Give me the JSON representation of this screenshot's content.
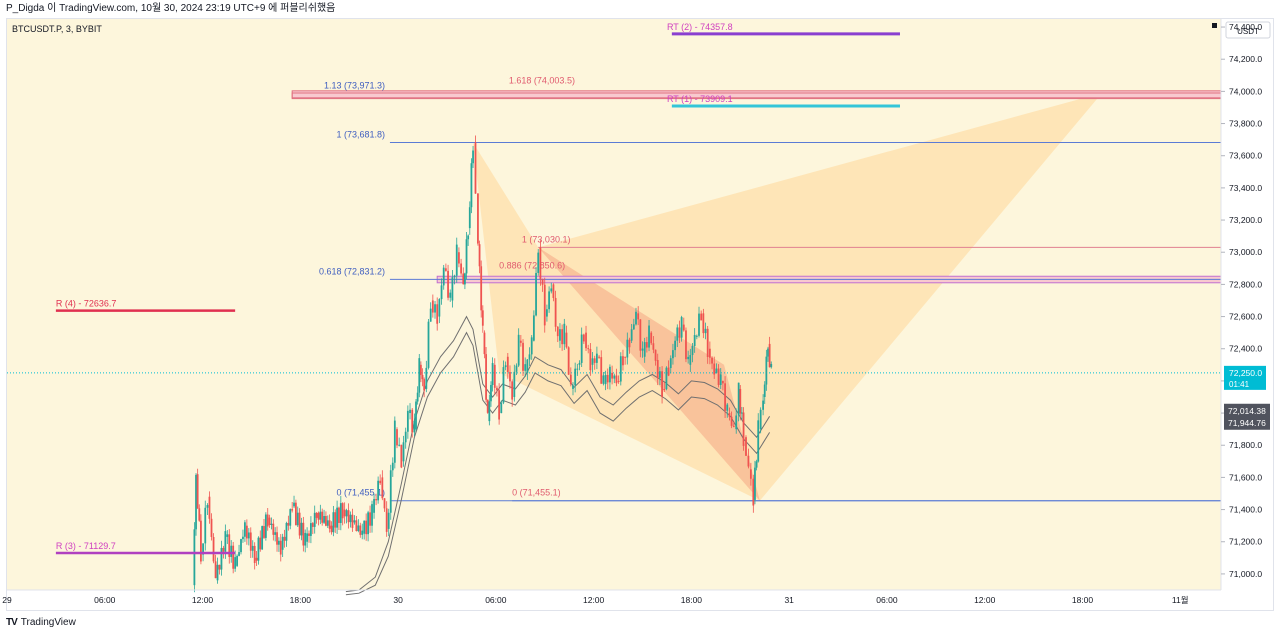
{
  "header": {
    "publish_line": "P_Digda 이 TradingView.com, 10월 30, 2024 23:19 UTC+9 에 퍼블리쉬했음"
  },
  "symbol_label": "BTCUSDT.P, 3, BYBIT",
  "footer": {
    "logo_text": "TV",
    "brand": "TradingView"
  },
  "chart_data": {
    "type": "candlestick",
    "currency_label": "USDT",
    "ylim": [
      70900,
      74450
    ],
    "y_ticks": [
      71000,
      71200,
      71400,
      71600,
      71800,
      72000,
      72200,
      72400,
      72600,
      72800,
      73000,
      73200,
      73400,
      73600,
      73800,
      74000,
      74200,
      74400
    ],
    "y_tick_labels": [
      "71,000.0",
      "71,200.0",
      "71,400.0",
      "71,600.0",
      "71,800.0",
      "72,000.0",
      "72,200.0",
      "72,400.0",
      "72,600.0",
      "72,800.0",
      "73,000.0",
      "73,200.0",
      "73,400.0",
      "73,600.0",
      "73,800.0",
      "74,000.0",
      "74,200.0",
      "74,400.0"
    ],
    "x_ticks": [
      {
        "label": "29",
        "t": 0
      },
      {
        "label": "06:00",
        "t": 6
      },
      {
        "label": "12:00",
        "t": 12
      },
      {
        "label": "18:00",
        "t": 18
      },
      {
        "label": "30",
        "t": 24
      },
      {
        "label": "06:00",
        "t": 30
      },
      {
        "label": "12:00",
        "t": 36
      },
      {
        "label": "18:00",
        "t": 42
      },
      {
        "label": "31",
        "t": 48
      },
      {
        "label": "06:00",
        "t": 54
      },
      {
        "label": "12:00",
        "t": 60
      },
      {
        "label": "18:00",
        "t": 66
      },
      {
        "label": "11월",
        "t": 72
      }
    ],
    "xlim_hours": [
      0,
      74.5
    ],
    "current_price": {
      "value": 72250.0,
      "label": "72,250.0",
      "countdown": "01:41",
      "color": "#00bcd4"
    },
    "extra_labels": [
      {
        "label": "72,014.38",
        "value": 72014.38
      },
      {
        "label": "71,944.76",
        "value": 71944.76
      }
    ],
    "price_path": [
      [
        11.4,
        70930
      ],
      [
        11.6,
        71620
      ],
      [
        11.9,
        71120
      ],
      [
        12.3,
        71480
      ],
      [
        12.8,
        70960
      ],
      [
        13.4,
        71230
      ],
      [
        14.0,
        71050
      ],
      [
        14.6,
        71300
      ],
      [
        15.2,
        71100
      ],
      [
        16.0,
        71350
      ],
      [
        16.8,
        71150
      ],
      [
        17.5,
        71420
      ],
      [
        18.3,
        71200
      ],
      [
        19.0,
        71380
      ],
      [
        19.8,
        71300
      ],
      [
        20.6,
        71400
      ],
      [
        21.2,
        71320
      ],
      [
        21.8,
        71250
      ],
      [
        22.4,
        71380
      ],
      [
        22.9,
        71600
      ],
      [
        23.3,
        71280
      ],
      [
        23.8,
        71900
      ],
      [
        24.2,
        71700
      ],
      [
        24.6,
        72000
      ],
      [
        25.0,
        71900
      ],
      [
        25.3,
        72300
      ],
      [
        25.6,
        72150
      ],
      [
        26.0,
        72700
      ],
      [
        26.4,
        72600
      ],
      [
        26.8,
        72900
      ],
      [
        27.2,
        72700
      ],
      [
        27.6,
        73000
      ],
      [
        28.0,
        72800
      ],
      [
        28.3,
        73150
      ],
      [
        28.6,
        73682
      ],
      [
        28.9,
        73050
      ],
      [
        29.2,
        72500
      ],
      [
        29.5,
        71950
      ],
      [
        29.8,
        72300
      ],
      [
        30.2,
        72000
      ],
      [
        30.6,
        72350
      ],
      [
        31.0,
        72100
      ],
      [
        31.4,
        72450
      ],
      [
        31.8,
        72250
      ],
      [
        32.2,
        72450
      ],
      [
        32.6,
        73030
      ],
      [
        33.0,
        72600
      ],
      [
        33.4,
        72800
      ],
      [
        33.8,
        72450
      ],
      [
        34.2,
        72500
      ],
      [
        34.6,
        72150
      ],
      [
        35.0,
        72300
      ],
      [
        35.4,
        72500
      ],
      [
        35.8,
        72300
      ],
      [
        36.2,
        72350
      ],
      [
        36.6,
        72180
      ],
      [
        37.0,
        72250
      ],
      [
        37.4,
        72200
      ],
      [
        37.8,
        72350
      ],
      [
        38.2,
        72450
      ],
      [
        38.6,
        72620
      ],
      [
        39.0,
        72350
      ],
      [
        39.4,
        72500
      ],
      [
        39.8,
        72330
      ],
      [
        40.2,
        72150
      ],
      [
        40.6,
        72280
      ],
      [
        41.0,
        72450
      ],
      [
        41.4,
        72550
      ],
      [
        41.8,
        72300
      ],
      [
        42.2,
        72480
      ],
      [
        42.6,
        72620
      ],
      [
        43.0,
        72400
      ],
      [
        43.4,
        72250
      ],
      [
        43.8,
        72200
      ],
      [
        44.2,
        72000
      ],
      [
        44.6,
        71900
      ],
      [
        44.9,
        72150
      ],
      [
        45.2,
        71850
      ],
      [
        45.5,
        71650
      ],
      [
        45.8,
        71460
      ],
      [
        46.1,
        71900
      ],
      [
        46.4,
        72100
      ],
      [
        46.7,
        72430
      ],
      [
        46.9,
        72250
      ]
    ],
    "indicator_upper": [
      [
        20.8,
        70890
      ],
      [
        21.6,
        70900
      ],
      [
        22.6,
        70980
      ],
      [
        23.4,
        71200
      ],
      [
        24.2,
        71560
      ],
      [
        25.0,
        71950
      ],
      [
        25.8,
        72200
      ],
      [
        26.6,
        72350
      ],
      [
        27.4,
        72450
      ],
      [
        28.2,
        72600
      ],
      [
        28.6,
        72520
      ],
      [
        29.2,
        72180
      ],
      [
        29.8,
        72100
      ],
      [
        30.4,
        72180
      ],
      [
        31.2,
        72150
      ],
      [
        31.8,
        72230
      ],
      [
        32.4,
        72350
      ],
      [
        33.2,
        72300
      ],
      [
        34.0,
        72270
      ],
      [
        34.8,
        72160
      ],
      [
        35.6,
        72240
      ],
      [
        36.4,
        72100
      ],
      [
        37.2,
        72050
      ],
      [
        38.0,
        72130
      ],
      [
        38.8,
        72200
      ],
      [
        39.6,
        72240
      ],
      [
        40.4,
        72190
      ],
      [
        41.2,
        72120
      ],
      [
        42.0,
        72200
      ],
      [
        42.8,
        72190
      ],
      [
        43.6,
        72150
      ],
      [
        44.4,
        72080
      ],
      [
        45.2,
        71940
      ],
      [
        46.0,
        71850
      ],
      [
        46.8,
        71980
      ]
    ],
    "indicator_lower": [
      [
        20.8,
        70870
      ],
      [
        21.6,
        70880
      ],
      [
        22.6,
        70930
      ],
      [
        23.4,
        71110
      ],
      [
        24.2,
        71460
      ],
      [
        25.0,
        71850
      ],
      [
        25.8,
        72100
      ],
      [
        26.6,
        72250
      ],
      [
        27.4,
        72350
      ],
      [
        28.2,
        72500
      ],
      [
        28.6,
        72420
      ],
      [
        29.2,
        72080
      ],
      [
        29.8,
        72000
      ],
      [
        30.4,
        72080
      ],
      [
        31.2,
        72050
      ],
      [
        31.8,
        72130
      ],
      [
        32.4,
        72250
      ],
      [
        33.2,
        72200
      ],
      [
        34.0,
        72170
      ],
      [
        34.8,
        72060
      ],
      [
        35.6,
        72140
      ],
      [
        36.4,
        72000
      ],
      [
        37.2,
        71950
      ],
      [
        38.0,
        72030
      ],
      [
        38.8,
        72100
      ],
      [
        39.6,
        72140
      ],
      [
        40.4,
        72090
      ],
      [
        41.2,
        72020
      ],
      [
        42.0,
        72100
      ],
      [
        42.8,
        72090
      ],
      [
        43.6,
        72050
      ],
      [
        44.4,
        71980
      ],
      [
        45.2,
        71840
      ],
      [
        46.0,
        71750
      ],
      [
        46.8,
        71880
      ]
    ],
    "horizontal_levels": [
      {
        "name": "fib-1-left",
        "value": 73681.8,
        "from": 23.5,
        "to": 74.5,
        "color": "#5b7bd5",
        "label": "1 (73,681.8)",
        "label_color": "#3f5ec0",
        "label_anchor": "end",
        "label_at": 23.2
      },
      {
        "name": "fib-0618-left",
        "value": 72831.2,
        "from": 23.5,
        "to": 74.5,
        "color": "#5b7bd5",
        "label": "0.618 (72,831.2)",
        "label_color": "#3f5ec0",
        "label_anchor": "end",
        "label_at": 23.2
      },
      {
        "name": "fib-0-left",
        "value": 71455.1,
        "from": 23.5,
        "to": 74.5,
        "color": "#5b7bd5",
        "label": "0 (71,455.1)",
        "label_color": "#3f5ec0",
        "label_anchor": "end",
        "label_at": 23.2
      },
      {
        "name": "fib-1-right",
        "value": 73030.1,
        "from": 32.6,
        "to": 74.5,
        "color": "#e08090",
        "label": "1 (73,030.1)",
        "label_color": "#e05a6e",
        "label_anchor": "start",
        "label_at": 31.6
      },
      {
        "name": "fib-0-right",
        "value": 71455.1,
        "from": 31.0,
        "to": 74.5,
        "color": "#5b7bd5",
        "label": "0 (71,455.1)",
        "label_color": "#e05a6e",
        "label_anchor": "start",
        "label_at": 31.0
      }
    ],
    "zones": [
      {
        "name": "zone-1618",
        "top": 74003.5,
        "bottom": 73955,
        "from": 17.5,
        "to": 74.5,
        "fill": "#f8c9cf",
        "stroke": "#e07080",
        "label": "1.618 (74,003.5)",
        "label_color": "#e05a6e",
        "label_at": 30.8,
        "label_value": 74030
      },
      {
        "name": "zone-113",
        "top": 73990,
        "bottom": 73960,
        "from": 17.5,
        "to": 74.5,
        "fill": "none",
        "stroke": "#e07080",
        "label": "1.13 (73,971.3)",
        "label_color": "#3f5ec0",
        "label_at": 23.2,
        "label_value": 74000,
        "label_anchor": "end"
      },
      {
        "name": "zone-0886",
        "top": 72850.6,
        "bottom": 72810,
        "from": 26.4,
        "to": 74.5,
        "fill": "#f8c9cf",
        "stroke": "#c070d0",
        "label": "0.886 (72,850.6)",
        "label_color": "#e05a6e",
        "label_at": 30.2,
        "label_value": 72880
      }
    ],
    "segments": [
      {
        "name": "rt-2-line",
        "value": 74357.8,
        "from": 40.8,
        "to": 54.8,
        "color": "#8a3fd0",
        "width": 3,
        "label": "RT (2) - 74357.8",
        "label_color": "#d040c0",
        "label_at": 40.5
      },
      {
        "name": "rt-1-line",
        "value": 73909.1,
        "from": 40.8,
        "to": 54.8,
        "color": "#33c5d8",
        "width": 3,
        "label": "RT (1) - 73909.1",
        "label_color": "#d040c0",
        "label_at": 40.5
      },
      {
        "name": "r-4-line",
        "value": 72636.7,
        "from": 3.0,
        "to": 14.0,
        "color": "#e03050",
        "width": 2.5,
        "label": "R (4) - 72636.7",
        "label_color": "#e03050",
        "label_at": 3.0
      },
      {
        "name": "r-3-line",
        "value": 71129.7,
        "from": 3.0,
        "to": 14.0,
        "color": "#b040c0",
        "width": 2.5,
        "label": "R (3) - 71129.7",
        "label_color": "#d040c0",
        "label_at": 3.0
      }
    ],
    "patterns": [
      {
        "name": "pattern-wing-large",
        "points": [
          [
            28.6,
            73682
          ],
          [
            32.6,
            73030
          ],
          [
            67.2,
            73990
          ],
          [
            46.2,
            71455
          ],
          [
            30.2,
            72250
          ]
        ],
        "fill": "#ffd08a",
        "opacity": 0.45
      },
      {
        "name": "pattern-wing-small",
        "points": [
          [
            32.6,
            73030
          ],
          [
            46.2,
            71455
          ],
          [
            52.5,
            72831
          ],
          [
            46.2,
            71455
          ],
          [
            44.0,
            72300
          ]
        ],
        "fill": "#f49a7a",
        "opacity": 0.45
      }
    ]
  }
}
